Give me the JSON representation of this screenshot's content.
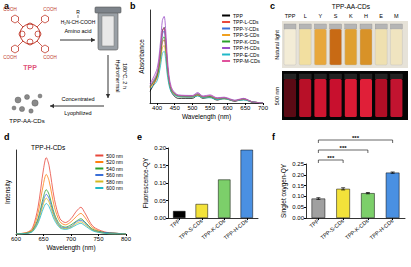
{
  "diagram": {
    "panel": "a",
    "molecule": "TPP",
    "substituent": "COOH",
    "reagent_group": "R",
    "reagent_formula": "H₂N-CH-COOH",
    "reagent_label": "Amino acid",
    "step1": [
      "Hydrothermal",
      "180°C, 2 h"
    ],
    "step2": [
      "Concentrated",
      "Lyophilized"
    ],
    "product": "TPP-AA-CDs"
  },
  "photo": {
    "panel": "c",
    "title": "TPP-AA-CDs",
    "samples": [
      "TPP",
      "L",
      "Y",
      "S",
      "K",
      "H",
      "E",
      "M"
    ],
    "rows": [
      "Natural light",
      "500 nm"
    ]
  },
  "chart_data": [
    {
      "panel": "b",
      "type": "line",
      "x_label": "Wavelength (nm)",
      "y_label": "Absorbance",
      "x": [
        380,
        400,
        410,
        415,
        420,
        425,
        430,
        440,
        460,
        500,
        515,
        530,
        550,
        570,
        590,
        620,
        645,
        670,
        700
      ],
      "series": [
        {
          "name": "TPP",
          "color": "#000000",
          "values": [
            0.2,
            0.46,
            0.91,
            1.24,
            1.3,
            1.04,
            0.59,
            0.2,
            0.08,
            0.08,
            0.13,
            0.08,
            0.1,
            0.05,
            0.08,
            0.03,
            0.07,
            0.01,
            0
          ]
        },
        {
          "name": "TPP-L-CDs",
          "color": "#e8483c",
          "values": [
            0.27,
            0.45,
            0.79,
            1.04,
            1.09,
            0.88,
            0.53,
            0.22,
            0.12,
            0.11,
            0.14,
            0.1,
            0.11,
            0.07,
            0.08,
            0.04,
            0.06,
            0.02,
            0
          ]
        },
        {
          "name": "TPP-Y-CDs",
          "color": "#3a6fd8",
          "values": [
            0.29,
            0.5,
            0.9,
            1.18,
            1.24,
            1.0,
            0.6,
            0.24,
            0.13,
            0.12,
            0.16,
            0.11,
            0.12,
            0.08,
            0.09,
            0.04,
            0.07,
            0.02,
            0
          ]
        },
        {
          "name": "TPP-S-CDs",
          "color": "#f0a020",
          "values": [
            0.26,
            0.42,
            0.72,
            0.95,
            0.99,
            0.8,
            0.49,
            0.21,
            0.11,
            0.1,
            0.13,
            0.09,
            0.1,
            0.07,
            0.07,
            0.04,
            0.06,
            0.02,
            0
          ]
        },
        {
          "name": "TPP-K-CDs",
          "color": "#2ca02c",
          "values": [
            0.28,
            0.47,
            0.83,
            1.09,
            1.14,
            0.92,
            0.55,
            0.23,
            0.12,
            0.11,
            0.15,
            0.1,
            0.11,
            0.07,
            0.08,
            0.04,
            0.06,
            0.02,
            0
          ]
        },
        {
          "name": "TPP-H-CDs",
          "color": "#9b4fc8",
          "values": [
            0.33,
            0.59,
            1.07,
            1.42,
            1.49,
            1.2,
            0.71,
            0.28,
            0.14,
            0.13,
            0.18,
            0.12,
            0.14,
            0.09,
            0.1,
            0.05,
            0.08,
            0.02,
            0
          ]
        },
        {
          "name": "TPP-E-CDs",
          "color": "#20b8c8",
          "values": [
            0.24,
            0.38,
            0.65,
            0.85,
            0.89,
            0.72,
            0.44,
            0.19,
            0.11,
            0.1,
            0.12,
            0.09,
            0.09,
            0.06,
            0.07,
            0.04,
            0.05,
            0.02,
            0
          ]
        },
        {
          "name": "TPP-M-CDs",
          "color": "#e0529c",
          "values": [
            0.3,
            0.52,
            0.93,
            1.23,
            1.29,
            1.04,
            0.62,
            0.25,
            0.13,
            0.12,
            0.16,
            0.11,
            0.13,
            0.08,
            0.09,
            0.04,
            0.07,
            0.02,
            0
          ]
        }
      ],
      "xlim": [
        380,
        700
      ],
      "xticks": [
        400,
        450,
        500,
        550,
        600,
        650,
        700
      ],
      "ylim": [
        0,
        1.6
      ],
      "tick_labels": "x",
      "legend": "upper right"
    },
    {
      "panel": "d",
      "type": "line",
      "title": "TPP-H-CDs",
      "x_label": "Wavelength (nm)",
      "y_label": "Intensity",
      "x": [
        600,
        620,
        630,
        640,
        650,
        655,
        660,
        670,
        680,
        690,
        700,
        710,
        718,
        725,
        740,
        760,
        780,
        800
      ],
      "series": [
        {
          "name": "500 nm",
          "color": "#e8483c",
          "values": [
            0,
            0.02,
            0.08,
            0.35,
            0.85,
            1.0,
            0.9,
            0.45,
            0.2,
            0.15,
            0.2,
            0.3,
            0.35,
            0.28,
            0.1,
            0.03,
            0.01,
            0
          ]
        },
        {
          "name": "520 nm",
          "color": "#ff7f0e",
          "values": [
            0,
            0.02,
            0.06,
            0.27,
            0.66,
            0.78,
            0.7,
            0.35,
            0.16,
            0.12,
            0.16,
            0.23,
            0.27,
            0.22,
            0.08,
            0.02,
            0.01,
            0
          ]
        },
        {
          "name": "540 nm",
          "color": "#2ca02c",
          "values": [
            0,
            0.01,
            0.05,
            0.2,
            0.49,
            0.58,
            0.52,
            0.26,
            0.12,
            0.09,
            0.12,
            0.17,
            0.2,
            0.16,
            0.06,
            0.02,
            0.01,
            0
          ]
        },
        {
          "name": "560 nm",
          "color": "#3a6fd8",
          "values": [
            0,
            0.01,
            0.04,
            0.18,
            0.44,
            0.52,
            0.47,
            0.23,
            0.1,
            0.08,
            0.1,
            0.16,
            0.18,
            0.15,
            0.05,
            0.02,
            0.01,
            0
          ]
        },
        {
          "name": "580 nm",
          "color": "#d4b820",
          "values": [
            0,
            0.01,
            0.04,
            0.16,
            0.4,
            0.47,
            0.42,
            0.21,
            0.09,
            0.07,
            0.09,
            0.14,
            0.16,
            0.13,
            0.05,
            0.01,
            0,
            0
          ]
        },
        {
          "name": "600 nm",
          "color": "#20b8c8",
          "values": [
            0,
            0.01,
            0.03,
            0.14,
            0.34,
            0.4,
            0.36,
            0.18,
            0.08,
            0.06,
            0.08,
            0.12,
            0.14,
            0.11,
            0.04,
            0.01,
            0,
            0
          ]
        }
      ],
      "xlim": [
        600,
        800
      ],
      "xticks": [
        600,
        650,
        700,
        750,
        800
      ],
      "ylim": [
        0,
        1.1
      ],
      "tick_labels": "x",
      "legend": "upper right"
    },
    {
      "panel": "e",
      "type": "bar",
      "y_label": "Fluorescence-QY",
      "categories": [
        "TPP",
        "TPP-S-CDs",
        "TPP-K-CDs",
        "TPP-H-CDs"
      ],
      "values": [
        0.02,
        0.04,
        0.11,
        0.195
      ],
      "colors": [
        "#000000",
        "#f3e23a",
        "#7ccf6a",
        "#4a90e2"
      ],
      "ylim": [
        0,
        0.2
      ],
      "yticks": [
        {
          "value": 0,
          "label": "0.00"
        },
        {
          "value": 0.05,
          "label": "0.05"
        },
        {
          "value": 0.1,
          "label": "0.10"
        },
        {
          "value": 0.15,
          "label": "0.15"
        },
        {
          "value": 0.2,
          "label": "0.20"
        }
      ]
    },
    {
      "panel": "f",
      "type": "bar",
      "y_label": "Singlet oxygen-QY",
      "categories": [
        "TPP",
        "TPP-S-CDs",
        "TPP-K-CDs",
        "TPP-H-CDs"
      ],
      "values": [
        0.09,
        0.135,
        0.115,
        0.21
      ],
      "errors": [
        0.004,
        0.005,
        0.003,
        0.003
      ],
      "colors": [
        "#a0a0a0",
        "#f3e23a",
        "#7ccf6a",
        "#4a90e2"
      ],
      "ylim": [
        0,
        0.25
      ],
      "yticks": [
        {
          "value": 0,
          "label": "0.00"
        },
        {
          "value": 0.05,
          "label": "0.05"
        },
        {
          "value": 0.1,
          "label": "0.10"
        },
        {
          "value": 0.15,
          "label": "0.15"
        },
        {
          "value": 0.2,
          "label": "0.20"
        },
        {
          "value": 0.25,
          "label": "0.25"
        }
      ],
      "significance": [
        {
          "from": "TPP",
          "to": "TPP-S-CDs",
          "label": "***"
        },
        {
          "from": "TPP",
          "to": "TPP-K-CDs",
          "label": "***"
        },
        {
          "from": "TPP",
          "to": "TPP-H-CDs",
          "label": "***"
        }
      ]
    }
  ]
}
